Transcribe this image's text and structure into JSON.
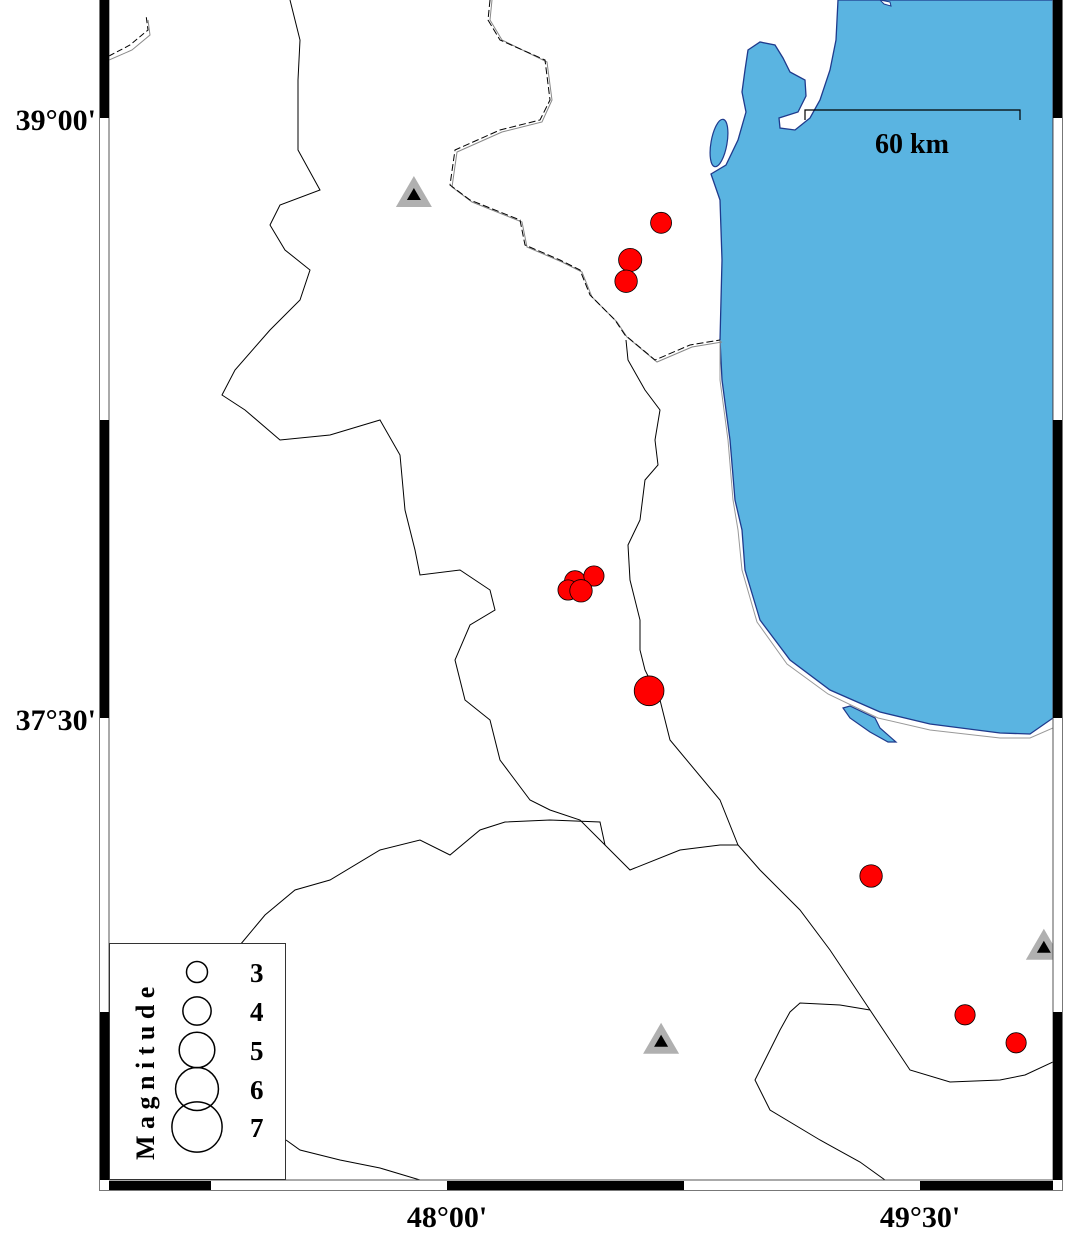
{
  "map": {
    "extent": {
      "lon_min": 46.928,
      "lon_max": 49.922,
      "lat_min": 36.345,
      "lat_max": 39.295
    },
    "colors": {
      "sea": "#5ab4e1",
      "coast": "#1f3a8c",
      "earthquake": "#ff0000",
      "station_outer": "#b0b0b0",
      "station_inner": "#000000",
      "border": "#000000"
    },
    "axis": {
      "y_ticks": [
        {
          "lat": 39.0,
          "label": "39°00'"
        },
        {
          "lat": 37.5,
          "label": "37°30'"
        }
      ],
      "x_ticks": [
        {
          "lon": 48.0,
          "label": "48°00'"
        },
        {
          "lon": 49.5,
          "label": "49°30'"
        }
      ]
    },
    "scale_bar": {
      "label": "60 km",
      "length_km": 60
    },
    "earthquakes": [
      {
        "lon": 48.679,
        "lat": 38.738,
        "magnitude": 3.0
      },
      {
        "lon": 48.581,
        "lat": 38.645,
        "magnitude": 3.3
      },
      {
        "lon": 48.568,
        "lat": 38.592,
        "magnitude": 3.2
      },
      {
        "lon": 48.406,
        "lat": 37.842,
        "magnitude": 3.0
      },
      {
        "lon": 48.466,
        "lat": 37.855,
        "magnitude": 2.9
      },
      {
        "lon": 48.384,
        "lat": 37.82,
        "magnitude": 2.9
      },
      {
        "lon": 48.425,
        "lat": 37.818,
        "magnitude": 3.2
      },
      {
        "lon": 48.641,
        "lat": 37.568,
        "magnitude": 4.2
      },
      {
        "lon": 49.345,
        "lat": 37.105,
        "magnitude": 3.2
      },
      {
        "lon": 49.643,
        "lat": 36.758,
        "magnitude": 2.9
      },
      {
        "lon": 49.805,
        "lat": 36.688,
        "magnitude": 2.9
      }
    ],
    "stations": [
      {
        "lon": 47.895,
        "lat": 38.81,
        "icon": "triangle-icon"
      },
      {
        "lon": 48.679,
        "lat": 36.693,
        "icon": "triangle-icon"
      },
      {
        "lon": 49.893,
        "lat": 36.928,
        "icon": "triangle-icon"
      }
    ]
  },
  "legend": {
    "title": "Magnitude",
    "items": [
      {
        "magnitude": 3,
        "label": "3"
      },
      {
        "magnitude": 4,
        "label": "4"
      },
      {
        "magnitude": 5,
        "label": "5"
      },
      {
        "magnitude": 6,
        "label": "6"
      },
      {
        "magnitude": 7,
        "label": "7"
      }
    ]
  }
}
